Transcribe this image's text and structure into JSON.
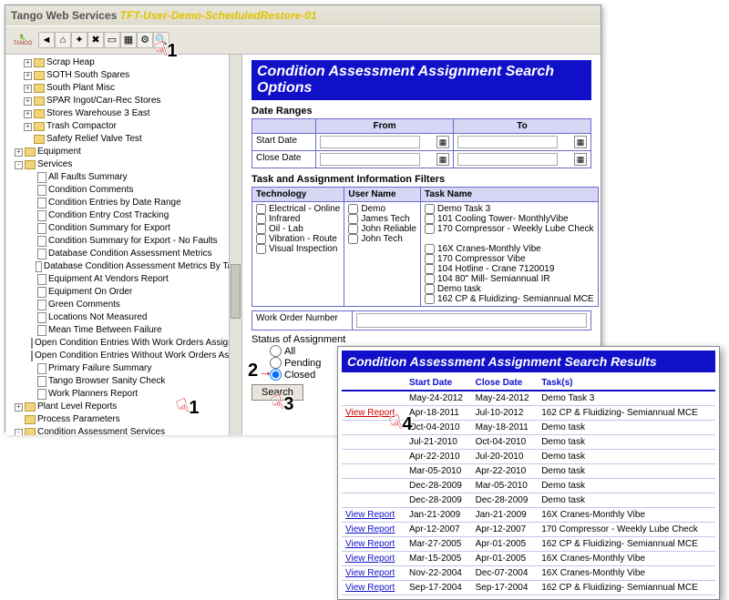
{
  "title_prefix": "Tango Web Services",
  "title_suffix": "TFT-User-Demo-ScheduledRestore-01",
  "logo_text": "TANGO",
  "toolbar_icons": [
    "back-icon",
    "home-icon",
    "tools-icon",
    "wrench-icon",
    "doc-icon",
    "grid-icon",
    "gear-icon",
    "search-icon"
  ],
  "tree": [
    {
      "ind": 10,
      "sq": "+",
      "ico": "fold",
      "label": "Scrap Heap"
    },
    {
      "ind": 10,
      "sq": "+",
      "ico": "fold",
      "label": "SOTH South Spares"
    },
    {
      "ind": 10,
      "sq": "+",
      "ico": "fold",
      "label": "South Plant Misc"
    },
    {
      "ind": 10,
      "sq": "+",
      "ico": "fold",
      "label": "SPAR Ingot/Can-Rec Stores"
    },
    {
      "ind": 10,
      "sq": "+",
      "ico": "fold",
      "label": "Stores Warehouse 3 East"
    },
    {
      "ind": 10,
      "sq": "+",
      "ico": "fold",
      "label": "Trash Compactor"
    },
    {
      "ind": 10,
      "sq": "",
      "ico": "fold",
      "label": "Safety Relief Valve Test"
    },
    {
      "ind": 0,
      "sq": "+",
      "ico": "fold",
      "label": "Equipment"
    },
    {
      "ind": 0,
      "sq": "-",
      "ico": "fold",
      "label": "Services"
    },
    {
      "ind": 14,
      "sq": "",
      "ico": "page",
      "label": "All Faults Summary"
    },
    {
      "ind": 14,
      "sq": "",
      "ico": "page",
      "label": "Condition Comments"
    },
    {
      "ind": 14,
      "sq": "",
      "ico": "page",
      "label": "Condition Entries by Date Range"
    },
    {
      "ind": 14,
      "sq": "",
      "ico": "page",
      "label": "Condition Entry Cost Tracking"
    },
    {
      "ind": 14,
      "sq": "",
      "ico": "page",
      "label": "Condition Summary for Export"
    },
    {
      "ind": 14,
      "sq": "",
      "ico": "page",
      "label": "Condition Summary for Export - No Faults"
    },
    {
      "ind": 14,
      "sq": "",
      "ico": "page",
      "label": "Database Condition Assessment Metrics"
    },
    {
      "ind": 14,
      "sq": "",
      "ico": "page",
      "label": "Database Condition Assessment Metrics By Task"
    },
    {
      "ind": 14,
      "sq": "",
      "ico": "page",
      "label": "Equipment At Vendors Report"
    },
    {
      "ind": 14,
      "sq": "",
      "ico": "page",
      "label": "Equipment On Order"
    },
    {
      "ind": 14,
      "sq": "",
      "ico": "page",
      "label": "Green Comments"
    },
    {
      "ind": 14,
      "sq": "",
      "ico": "page",
      "label": "Locations Not Measured"
    },
    {
      "ind": 14,
      "sq": "",
      "ico": "page",
      "label": "Mean Time Between Failure"
    },
    {
      "ind": 14,
      "sq": "",
      "ico": "page",
      "label": "Open Condition Entries With Work Orders Assigned"
    },
    {
      "ind": 14,
      "sq": "",
      "ico": "page",
      "label": "Open Condition Entries Without Work Orders Assigned"
    },
    {
      "ind": 14,
      "sq": "",
      "ico": "page",
      "label": "Primary Failure Summary"
    },
    {
      "ind": 14,
      "sq": "",
      "ico": "page",
      "label": "Tango Browser Sanity Check"
    },
    {
      "ind": 14,
      "sq": "",
      "ico": "page",
      "label": "Work Planners Report"
    },
    {
      "ind": 0,
      "sq": "+",
      "ico": "fold",
      "label": "Plant Level Reports"
    },
    {
      "ind": 0,
      "sq": "",
      "ico": "fold",
      "label": "Process Parameters"
    },
    {
      "ind": 0,
      "sq": "-",
      "ico": "fold",
      "label": "Condition Assessment Services"
    },
    {
      "ind": 14,
      "sq": "",
      "ico": "dot",
      "label": "Condition Assessment Report Search",
      "hl": true
    },
    {
      "ind": 14,
      "sq": "",
      "ico": "dot",
      "label": "Condition Assessment Task Control Panel"
    },
    {
      "ind": 14,
      "sq": "",
      "ico": "dot",
      "label": "Last Two Condition Assessments"
    }
  ],
  "search_title": "Condition Assessment Assignment Search Options",
  "date_section": "Date Ranges",
  "date_headers": {
    "from": "From",
    "to": "To"
  },
  "date_rows": [
    "Start Date",
    "Close Date"
  ],
  "filter_section": "Task and Assignment Information Filters",
  "filter_headers": {
    "tech": "Technology",
    "user": "User Name",
    "task": "Task Name"
  },
  "tech_opts": [
    "Electrical - Online",
    "Infrared",
    "Oil - Lab",
    "Vibration - Route",
    "Visual Inspection"
  ],
  "user_opts": [
    "Demo",
    "James Tech",
    "John Reliable",
    "John Tech"
  ],
  "task_opts": [
    "Demo Task 3",
    "101 Cooling Tower- MonthlyVibe",
    "170 Compressor - Weekly Lube Check",
    "",
    "16X Cranes-Monthly Vibe",
    "170 Compressor Vibe",
    "104 Hotline - Crane 7120019",
    "104 80\" Mill- Semiannual IR",
    "Demo task",
    "162 CP & Fluidizing- Semiannual MCE"
  ],
  "wo_label": "Work Order Number",
  "status_label": "Status of Assignment",
  "status_opts": [
    "All",
    "Pending",
    "Closed"
  ],
  "status_selected": 2,
  "search_btn": "Search",
  "results_title": "Condition Assessment Assignment Search Results",
  "results_headers": {
    "link": "",
    "start": "Start Date",
    "close": "Close Date",
    "tasks": "Task(s)"
  },
  "view_report": "View Report",
  "results_rows": [
    {
      "link": false,
      "start": "May-24-2012",
      "close": "May-24-2012",
      "task": "Demo Task 3"
    },
    {
      "link": true,
      "red": true,
      "start": "Apr-18-2011",
      "close": "Jul-10-2012",
      "task": "162 CP & Fluidizing- Semiannual MCE"
    },
    {
      "link": false,
      "start": "Oct-04-2010",
      "close": "May-18-2011",
      "task": "Demo task"
    },
    {
      "link": false,
      "start": "Jul-21-2010",
      "close": "Oct-04-2010",
      "task": "Demo task"
    },
    {
      "link": false,
      "start": "Apr-22-2010",
      "close": "Jul-20-2010",
      "task": "Demo task"
    },
    {
      "link": false,
      "start": "Mar-05-2010",
      "close": "Apr-22-2010",
      "task": "Demo task"
    },
    {
      "link": false,
      "start": "Dec-28-2009",
      "close": "Mar-05-2010",
      "task": "Demo task"
    },
    {
      "link": false,
      "start": "Dec-28-2009",
      "close": "Dec-28-2009",
      "task": "Demo task"
    },
    {
      "link": true,
      "start": "Jan-21-2009",
      "close": "Jan-21-2009",
      "task": "16X Cranes-Monthly Vibe"
    },
    {
      "link": true,
      "start": "Apr-12-2007",
      "close": "Apr-12-2007",
      "task": "170 Compressor - Weekly Lube Check"
    },
    {
      "link": true,
      "start": "Mar-27-2005",
      "close": "Apr-01-2005",
      "task": "162 CP & Fluidizing- Semiannual MCE"
    },
    {
      "link": true,
      "start": "Mar-15-2005",
      "close": "Apr-01-2005",
      "task": "16X Cranes-Monthly Vibe"
    },
    {
      "link": true,
      "start": "Nov-22-2004",
      "close": "Dec-07-2004",
      "task": "16X Cranes-Monthly Vibe"
    },
    {
      "link": true,
      "start": "Sep-17-2004",
      "close": "Sep-17-2004",
      "task": "162 CP & Fluidizing- Semiannual MCE"
    }
  ],
  "callouts": {
    "c1": "1",
    "c2": "2",
    "c3": "3",
    "c4": "4"
  }
}
